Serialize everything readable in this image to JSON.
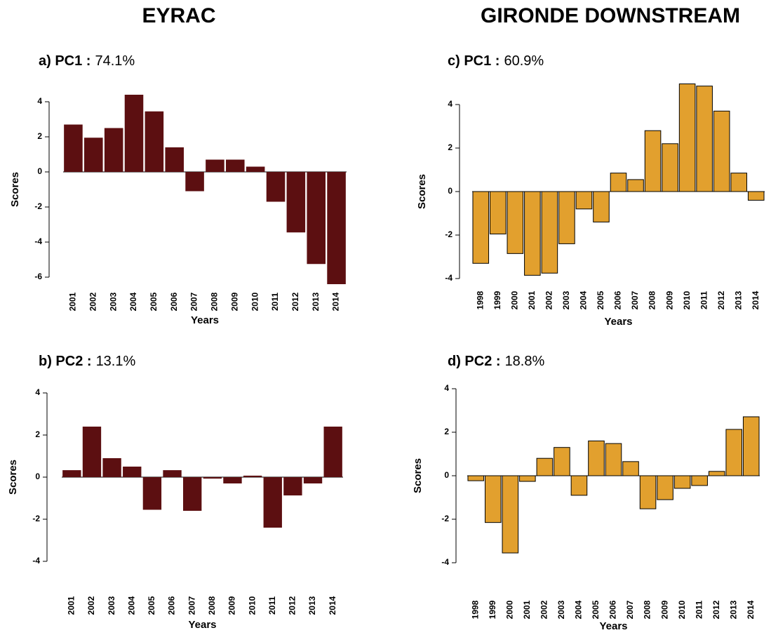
{
  "headings": [
    "EYRAC",
    "GIRONDE DOWNSTREAM"
  ],
  "chart_data": [
    {
      "type": "bar",
      "title": "a) PC1 :",
      "subtitle": "74.1%",
      "x_label": "Years",
      "y_label": "Scores",
      "categories": [
        "2001",
        "2002",
        "2003",
        "2004",
        "2005",
        "2006",
        "2007",
        "2008",
        "2009",
        "2010",
        "2011",
        "2012",
        "2013",
        "2014"
      ],
      "values": [
        2.7,
        1.95,
        2.5,
        4.4,
        3.45,
        1.4,
        -1.1,
        0.7,
        0.7,
        0.3,
        -1.7,
        -3.45,
        -5.25,
        -6.4
      ],
      "color": "#5c0f11",
      "ylim": [
        -6.5,
        4.5
      ],
      "yticks": [
        -6,
        -4,
        -2,
        0,
        2,
        4
      ]
    },
    {
      "type": "bar",
      "title": "b) PC2 :",
      "subtitle": "13.1%",
      "x_label": "Years",
      "y_label": "Scores",
      "categories": [
        "2001",
        "2002",
        "2003",
        "2004",
        "2005",
        "2006",
        "2007",
        "2008",
        "2009",
        "2010",
        "2011",
        "2012",
        "2013",
        "2014"
      ],
      "values": [
        0.33,
        2.4,
        0.9,
        0.5,
        -1.55,
        0.33,
        -1.6,
        -0.07,
        -0.3,
        0.07,
        -2.4,
        -0.87,
        -0.3,
        2.4
      ],
      "color": "#5c0f11",
      "ylim": [
        -4,
        4
      ],
      "yticks": [
        -4,
        -2,
        0,
        2,
        4
      ]
    },
    {
      "type": "bar",
      "title": "c) PC1 :",
      "subtitle": "60.9%",
      "x_label": "Years",
      "y_label": "Scores",
      "categories": [
        "1998",
        "1999",
        "2000",
        "2001",
        "2002",
        "2003",
        "2004",
        "2005",
        "2006",
        "2007",
        "2008",
        "2009",
        "2010",
        "2011",
        "2012",
        "2013",
        "2014"
      ],
      "values": [
        -3.3,
        -1.95,
        -2.85,
        -3.85,
        -3.75,
        -2.4,
        -0.8,
        -1.4,
        0.85,
        0.55,
        2.8,
        2.2,
        4.95,
        4.85,
        3.7,
        0.85,
        -0.4
      ],
      "color": "#e2a02e",
      "edgecolor": "#000000",
      "ylim": [
        -4,
        5
      ],
      "yticks": [
        -4,
        -2,
        0,
        2,
        4
      ]
    },
    {
      "type": "bar",
      "title": "d) PC2 :",
      "subtitle": "18.8%",
      "x_label": "Years",
      "y_label": "Scores",
      "categories": [
        "1998",
        "1999",
        "2000",
        "2001",
        "2002",
        "2003",
        "2004",
        "2005",
        "2006",
        "2007",
        "2008",
        "2009",
        "2010",
        "2011",
        "2012",
        "2013",
        "2014"
      ],
      "values": [
        -0.23,
        -2.15,
        -3.55,
        -0.26,
        0.8,
        1.3,
        -0.9,
        1.6,
        1.48,
        0.65,
        -1.52,
        -1.1,
        -0.58,
        -0.45,
        0.2,
        2.13,
        2.71
      ],
      "color": "#e2a02e",
      "edgecolor": "#000000",
      "ylim": [
        -4,
        4
      ],
      "yticks": [
        -4,
        -2,
        0,
        2,
        4
      ]
    }
  ]
}
